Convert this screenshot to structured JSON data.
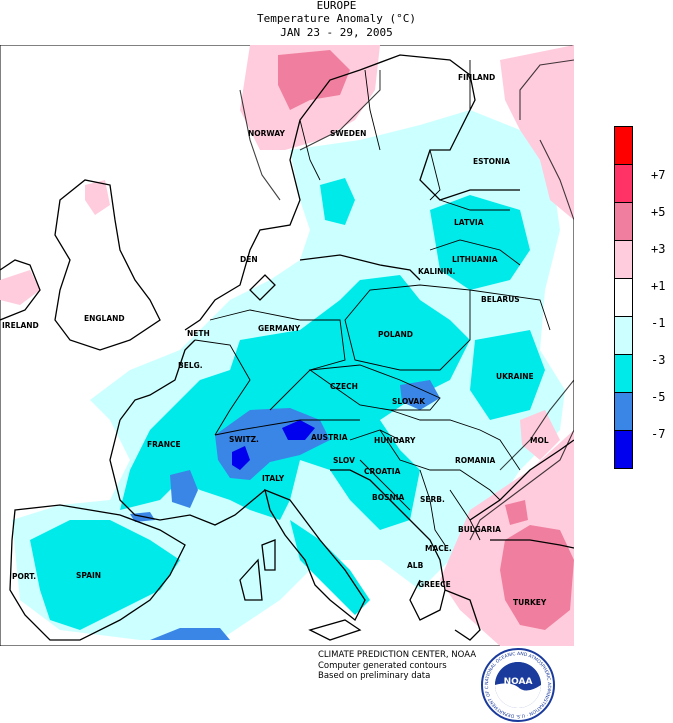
{
  "header": {
    "region": "EUROPE",
    "title": "Temperature Anomaly (°C)",
    "dates": "JAN 23 - 29, 2005"
  },
  "legend": {
    "items": [
      {
        "label": "+7",
        "color": "#ff0000"
      },
      {
        "label": "+5",
        "color": "#ff3366"
      },
      {
        "label": "+3",
        "color": "#f07f9f"
      },
      {
        "label": "+1",
        "color": "#ffccdd"
      },
      {
        "label": "-1",
        "color": "#ffffff"
      },
      {
        "label": "-3",
        "color": "#ccffff"
      },
      {
        "label": "-5",
        "color": "#00eaea"
      },
      {
        "label": "-7",
        "color": "#3a86e6"
      },
      {
        "label": "",
        "color": "#0000ee"
      }
    ]
  },
  "countries": [
    "FINLAND",
    "NORWAY",
    "SWEDEN",
    "ESTONIA",
    "LATVIA",
    "LITHUANIA",
    "KALININ.",
    "BELARUS",
    "DEN",
    "IRELAND",
    "ENGLAND",
    "NETH",
    "BELG.",
    "GERMANY",
    "POLAND",
    "UKRAINE",
    "CZECH",
    "SLOVAK",
    "FRANCE",
    "SWITZ.",
    "AUSTRIA",
    "HUNGARY",
    "ROMANIA",
    "MOL",
    "SLOV",
    "CROATIA",
    "BOSNIA",
    "SERB.",
    "BULGARIA",
    "ITALY",
    "MACE.",
    "ALB",
    "GREECE",
    "TURKEY",
    "PORT.",
    "SPAIN"
  ],
  "credits": {
    "line1": "CLIMATE PREDICTION CENTER, NOAA",
    "line2": "Computer generated contours",
    "line3": "Based on preliminary data"
  },
  "logo": {
    "label": "NOAA",
    "ring_text": "NATIONAL OCEANIC AND ATMOSPHERIC ADMINISTRATION · U.S. DEPARTMENT OF COMMERCE"
  }
}
